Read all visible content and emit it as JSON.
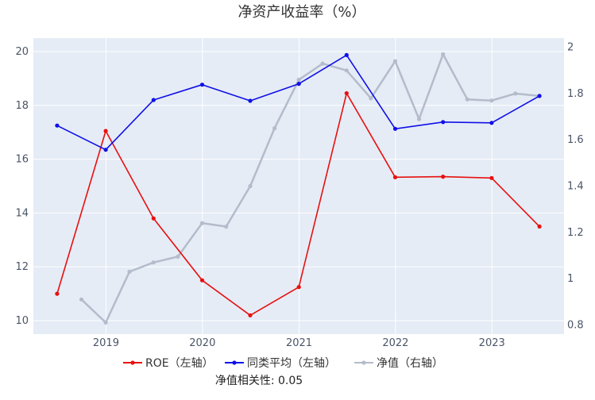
{
  "chart_data": {
    "type": "line",
    "title": "净资产收益率（%）",
    "footer_label": "净值相关性: ",
    "footer_value": "0.05",
    "x_ticks": [
      "2019",
      "2020",
      "2021",
      "2022",
      "2023"
    ],
    "y_left": {
      "ticks": [
        "10",
        "12",
        "14",
        "16",
        "18",
        "20"
      ],
      "range": [
        9.5,
        20.5
      ]
    },
    "y_right": {
      "ticks": [
        "0.8",
        "1",
        "1.2",
        "1.4",
        "1.6",
        "1.8",
        "2"
      ],
      "range": [
        0.76,
        2.04
      ]
    },
    "grid": true,
    "legend_position": "bottom",
    "series": [
      {
        "name": "ROE（左轴）",
        "axis": "left",
        "color": "#e8100f",
        "points": [
          [
            "2018-06-30",
            11.0
          ],
          [
            "2018-12-31",
            17.05
          ],
          [
            "2019-06-30",
            13.8
          ],
          [
            "2019-12-31",
            11.5
          ],
          [
            "2020-06-30",
            10.2
          ],
          [
            "2020-12-31",
            11.25
          ],
          [
            "2021-06-30",
            18.45
          ],
          [
            "2021-12-31",
            15.33
          ],
          [
            "2022-06-30",
            15.35
          ],
          [
            "2022-12-31",
            15.3
          ],
          [
            "2023-06-30",
            13.5
          ]
        ]
      },
      {
        "name": "同类平均（左轴）",
        "axis": "left",
        "color": "#1010e8",
        "points": [
          [
            "2018-06-30",
            17.25
          ],
          [
            "2018-12-31",
            16.35
          ],
          [
            "2019-06-30",
            18.2
          ],
          [
            "2019-12-31",
            18.77
          ],
          [
            "2020-06-30",
            18.17
          ],
          [
            "2020-12-31",
            18.8
          ],
          [
            "2021-06-30",
            19.87
          ],
          [
            "2021-12-31",
            17.13
          ],
          [
            "2022-06-30",
            17.38
          ],
          [
            "2022-12-31",
            17.35
          ],
          [
            "2023-06-30",
            18.35
          ]
        ]
      },
      {
        "name": "净值（右轴）",
        "axis": "right",
        "color": "#b4bccb",
        "points": [
          [
            "2018-09-30",
            0.91
          ],
          [
            "2018-12-31",
            0.81
          ],
          [
            "2019-03-31",
            1.03
          ],
          [
            "2019-06-30",
            1.07
          ],
          [
            "2019-09-30",
            1.095
          ],
          [
            "2019-12-31",
            1.24
          ],
          [
            "2020-03-31",
            1.225
          ],
          [
            "2020-06-30",
            1.4
          ],
          [
            "2020-09-30",
            1.65
          ],
          [
            "2020-12-31",
            1.86
          ],
          [
            "2021-03-31",
            1.93
          ],
          [
            "2021-06-30",
            1.9
          ],
          [
            "2021-09-30",
            1.78
          ],
          [
            "2021-12-31",
            1.94
          ],
          [
            "2022-03-31",
            1.69
          ],
          [
            "2022-06-30",
            1.97
          ],
          [
            "2022-09-30",
            1.775
          ],
          [
            "2022-12-31",
            1.77
          ],
          [
            "2023-03-31",
            1.8
          ],
          [
            "2023-06-30",
            1.79
          ]
        ]
      }
    ]
  }
}
